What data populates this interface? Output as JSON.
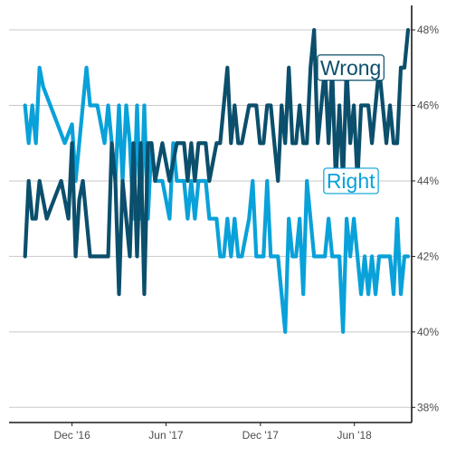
{
  "chart_data": {
    "type": "line",
    "title": "",
    "xlabel": "",
    "ylabel": "",
    "y_axis_side": "right",
    "grid": "horizontal",
    "legend": "direct labels",
    "xlim": [
      "2016-08-01",
      "2018-09-20"
    ],
    "ylim": [
      37.6,
      48.6
    ],
    "x_ticks": [
      {
        "date": "2016-12-01",
        "label": "Dec '16"
      },
      {
        "date": "2017-06-01",
        "label": "Jun '17"
      },
      {
        "date": "2017-12-01",
        "label": "Dec '17"
      },
      {
        "date": "2018-06-01",
        "label": "Jun '18"
      }
    ],
    "y_ticks": [
      {
        "value": 38,
        "label": "38%"
      },
      {
        "value": 40,
        "label": "40%"
      },
      {
        "value": 42,
        "label": "42%"
      },
      {
        "value": 44,
        "label": "44%"
      },
      {
        "value": 46,
        "label": "46%"
      },
      {
        "value": 48,
        "label": "48%"
      }
    ],
    "series": [
      {
        "name": "Wrong",
        "color": "#0b4f6c",
        "label_anchor": {
          "date": "2018-05-25",
          "value": 47.0
        },
        "points": [
          [
            "2016-09-01",
            42
          ],
          [
            "2016-09-08",
            44
          ],
          [
            "2016-09-15",
            43
          ],
          [
            "2016-09-22",
            43
          ],
          [
            "2016-09-29",
            44
          ],
          [
            "2016-10-06",
            43.5
          ],
          [
            "2016-10-13",
            43
          ],
          [
            "2016-10-27",
            43.5
          ],
          [
            "2016-11-10",
            44
          ],
          [
            "2016-11-24",
            43
          ],
          [
            "2016-12-01",
            45
          ],
          [
            "2016-12-08",
            42
          ],
          [
            "2016-12-15",
            43.5
          ],
          [
            "2016-12-22",
            44
          ],
          [
            "2016-12-29",
            43
          ],
          [
            "2017-01-05",
            42
          ],
          [
            "2017-01-26",
            42
          ],
          [
            "2017-02-09",
            42
          ],
          [
            "2017-02-16",
            45
          ],
          [
            "2017-02-23",
            44
          ],
          [
            "2017-03-02",
            41
          ],
          [
            "2017-03-09",
            44
          ],
          [
            "2017-03-16",
            43
          ],
          [
            "2017-03-23",
            42
          ],
          [
            "2017-03-30",
            45
          ],
          [
            "2017-04-06",
            42
          ],
          [
            "2017-04-13",
            45
          ],
          [
            "2017-04-20",
            41
          ],
          [
            "2017-04-27",
            45
          ],
          [
            "2017-05-04",
            45
          ],
          [
            "2017-05-11",
            44
          ],
          [
            "2017-05-25",
            45
          ],
          [
            "2017-06-08",
            44
          ],
          [
            "2017-06-22",
            45
          ],
          [
            "2017-07-06",
            45
          ],
          [
            "2017-07-13",
            44
          ],
          [
            "2017-07-20",
            45
          ],
          [
            "2017-07-27",
            44
          ],
          [
            "2017-08-03",
            45
          ],
          [
            "2017-08-17",
            45
          ],
          [
            "2017-08-24",
            44
          ],
          [
            "2017-09-07",
            45
          ],
          [
            "2017-09-14",
            45
          ],
          [
            "2017-09-21",
            46
          ],
          [
            "2017-09-28",
            47
          ],
          [
            "2017-10-05",
            45
          ],
          [
            "2017-10-12",
            46
          ],
          [
            "2017-10-19",
            45
          ],
          [
            "2017-10-26",
            45
          ],
          [
            "2017-11-09",
            46
          ],
          [
            "2017-11-23",
            46
          ],
          [
            "2017-11-30",
            45
          ],
          [
            "2017-12-07",
            45
          ],
          [
            "2017-12-14",
            46
          ],
          [
            "2017-12-21",
            46
          ],
          [
            "2017-12-28",
            45
          ],
          [
            "2018-01-04",
            44
          ],
          [
            "2018-01-11",
            46
          ],
          [
            "2018-01-18",
            45
          ],
          [
            "2018-01-25",
            47
          ],
          [
            "2018-02-01",
            45
          ],
          [
            "2018-02-08",
            45
          ],
          [
            "2018-02-15",
            46
          ],
          [
            "2018-02-22",
            45
          ],
          [
            "2018-03-01",
            45
          ],
          [
            "2018-03-08",
            47
          ],
          [
            "2018-03-15",
            48
          ],
          [
            "2018-03-22",
            45
          ],
          [
            "2018-03-29",
            46
          ],
          [
            "2018-04-05",
            47
          ],
          [
            "2018-04-12",
            45
          ],
          [
            "2018-04-19",
            47
          ],
          [
            "2018-04-26",
            44
          ],
          [
            "2018-05-03",
            46
          ],
          [
            "2018-05-10",
            44
          ],
          [
            "2018-05-17",
            47
          ],
          [
            "2018-05-24",
            45
          ],
          [
            "2018-05-31",
            46
          ],
          [
            "2018-06-07",
            44
          ],
          [
            "2018-06-14",
            46
          ],
          [
            "2018-06-21",
            46
          ],
          [
            "2018-06-28",
            46
          ],
          [
            "2018-07-05",
            45
          ],
          [
            "2018-07-12",
            46
          ],
          [
            "2018-07-19",
            47
          ],
          [
            "2018-07-26",
            46
          ],
          [
            "2018-08-02",
            45
          ],
          [
            "2018-08-09",
            46
          ],
          [
            "2018-08-16",
            45
          ],
          [
            "2018-08-23",
            45
          ],
          [
            "2018-08-30",
            47
          ],
          [
            "2018-09-06",
            47
          ],
          [
            "2018-09-13",
            48
          ]
        ]
      },
      {
        "name": "Right",
        "color": "#09a1d9",
        "label_anchor": {
          "date": "2018-05-25",
          "value": 44.0
        },
        "points": [
          [
            "2016-09-01",
            46
          ],
          [
            "2016-09-08",
            45
          ],
          [
            "2016-09-15",
            46
          ],
          [
            "2016-09-22",
            45
          ],
          [
            "2016-09-29",
            47
          ],
          [
            "2016-10-06",
            46.5
          ],
          [
            "2016-10-20",
            46
          ],
          [
            "2016-11-03",
            45.5
          ],
          [
            "2016-11-17",
            45
          ],
          [
            "2016-12-01",
            45.5
          ],
          [
            "2016-12-08",
            44
          ],
          [
            "2016-12-15",
            45
          ],
          [
            "2016-12-22",
            46
          ],
          [
            "2016-12-29",
            47
          ],
          [
            "2017-01-05",
            46
          ],
          [
            "2017-01-19",
            46
          ],
          [
            "2017-02-02",
            45
          ],
          [
            "2017-02-09",
            46
          ],
          [
            "2017-02-16",
            45
          ],
          [
            "2017-02-23",
            44
          ],
          [
            "2017-03-02",
            46
          ],
          [
            "2017-03-09",
            44
          ],
          [
            "2017-03-16",
            46
          ],
          [
            "2017-03-23",
            45
          ],
          [
            "2017-03-30",
            43
          ],
          [
            "2017-04-06",
            46
          ],
          [
            "2017-04-13",
            43
          ],
          [
            "2017-04-20",
            46
          ],
          [
            "2017-04-27",
            43
          ],
          [
            "2017-05-04",
            45
          ],
          [
            "2017-05-11",
            44
          ],
          [
            "2017-05-25",
            44
          ],
          [
            "2017-06-08",
            43
          ],
          [
            "2017-06-15",
            45
          ],
          [
            "2017-06-22",
            44
          ],
          [
            "2017-07-06",
            44
          ],
          [
            "2017-07-13",
            43
          ],
          [
            "2017-07-20",
            44
          ],
          [
            "2017-07-27",
            43
          ],
          [
            "2017-08-03",
            44
          ],
          [
            "2017-08-17",
            44
          ],
          [
            "2017-08-24",
            43
          ],
          [
            "2017-09-07",
            43
          ],
          [
            "2017-09-14",
            42
          ],
          [
            "2017-09-21",
            42
          ],
          [
            "2017-09-28",
            43
          ],
          [
            "2017-10-05",
            42
          ],
          [
            "2017-10-12",
            43
          ],
          [
            "2017-10-19",
            42
          ],
          [
            "2017-10-26",
            42
          ],
          [
            "2017-11-09",
            43
          ],
          [
            "2017-11-16",
            44
          ],
          [
            "2017-11-23",
            42
          ],
          [
            "2017-11-30",
            42
          ],
          [
            "2017-12-07",
            42
          ],
          [
            "2017-12-14",
            44
          ],
          [
            "2017-12-21",
            42
          ],
          [
            "2017-12-28",
            42
          ],
          [
            "2018-01-04",
            42
          ],
          [
            "2018-01-11",
            41
          ],
          [
            "2018-01-18",
            40
          ],
          [
            "2018-01-25",
            43
          ],
          [
            "2018-02-01",
            42
          ],
          [
            "2018-02-08",
            42
          ],
          [
            "2018-02-15",
            43
          ],
          [
            "2018-02-22",
            41
          ],
          [
            "2018-03-01",
            44
          ],
          [
            "2018-03-08",
            43
          ],
          [
            "2018-03-15",
            42
          ],
          [
            "2018-03-22",
            42
          ],
          [
            "2018-03-29",
            42
          ],
          [
            "2018-04-05",
            42
          ],
          [
            "2018-04-12",
            43
          ],
          [
            "2018-04-19",
            42
          ],
          [
            "2018-04-26",
            42
          ],
          [
            "2018-05-03",
            42
          ],
          [
            "2018-05-10",
            40
          ],
          [
            "2018-05-17",
            43
          ],
          [
            "2018-05-24",
            42
          ],
          [
            "2018-05-31",
            43
          ],
          [
            "2018-06-07",
            42
          ],
          [
            "2018-06-14",
            41
          ],
          [
            "2018-06-21",
            42
          ],
          [
            "2018-06-28",
            41
          ],
          [
            "2018-07-05",
            42
          ],
          [
            "2018-07-12",
            41
          ],
          [
            "2018-07-19",
            42
          ],
          [
            "2018-07-26",
            42
          ],
          [
            "2018-08-02",
            42
          ],
          [
            "2018-08-09",
            42
          ],
          [
            "2018-08-16",
            41
          ],
          [
            "2018-08-23",
            43
          ],
          [
            "2018-08-30",
            41
          ],
          [
            "2018-09-06",
            42
          ],
          [
            "2018-09-13",
            42
          ]
        ]
      }
    ]
  }
}
